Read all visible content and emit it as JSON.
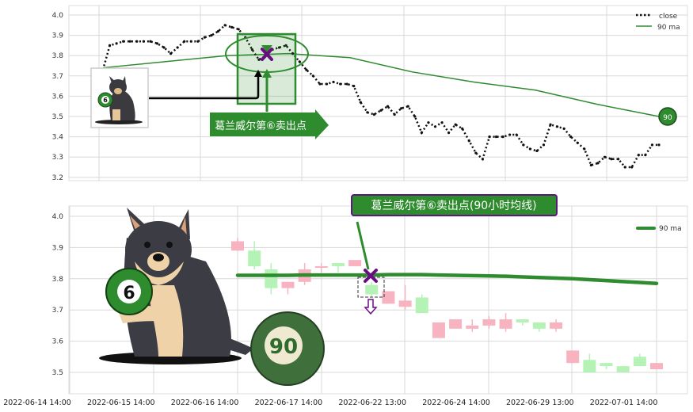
{
  "colors": {
    "ma": "#2e8b2e",
    "close": "#111111",
    "up": "#f7b3c0",
    "down": "#b5f2b5",
    "purple": "#6a0d83",
    "banner": "#2e8b2e"
  },
  "chart_data": [
    {
      "type": "line",
      "ylim": [
        3.2,
        4.0
      ],
      "yticks": [
        "3.2",
        "3.3",
        "3.4",
        "3.5",
        "3.6",
        "3.7",
        "3.8",
        "3.9",
        "4.0"
      ],
      "grid": true,
      "legend_position": "top-right",
      "legend": [
        "close",
        "90 ma"
      ],
      "series": [
        {
          "name": "close",
          "style": "dotted",
          "values": [
            3.73,
            3.85,
            3.86,
            3.87,
            3.87,
            3.87,
            3.87,
            3.87,
            3.86,
            3.84,
            3.81,
            3.84,
            3.87,
            3.87,
            3.87,
            3.89,
            3.9,
            3.92,
            3.95,
            3.94,
            3.93,
            3.89,
            3.83,
            3.78,
            3.8,
            3.83,
            3.84,
            3.85,
            3.81,
            3.77,
            3.73,
            3.7,
            3.66,
            3.66,
            3.67,
            3.66,
            3.66,
            3.65,
            3.57,
            3.52,
            3.51,
            3.53,
            3.55,
            3.51,
            3.54,
            3.55,
            3.5,
            3.42,
            3.47,
            3.45,
            3.47,
            3.42,
            3.46,
            3.44,
            3.38,
            3.32,
            3.29,
            3.4,
            3.4,
            3.4,
            3.41,
            3.41,
            3.36,
            3.34,
            3.33,
            3.36,
            3.46,
            3.45,
            3.44,
            3.4,
            3.37,
            3.34,
            3.26,
            3.27,
            3.3,
            3.29,
            3.29,
            3.25,
            3.25,
            3.31,
            3.31,
            3.36,
            3.36
          ]
        },
        {
          "name": "90 ma",
          "values": [
            3.74,
            3.77,
            3.8,
            3.81,
            3.79,
            3.72,
            3.67,
            3.63,
            3.56,
            3.5
          ]
        }
      ],
      "annotations": {
        "sell_label": "葛兰威尔第⑥卖出点",
        "end_badge": "90",
        "ball_label": "6"
      }
    },
    {
      "type": "candlestick",
      "ylim": [
        3.45,
        4.0
      ],
      "yticks": [
        "3.5",
        "3.6",
        "3.7",
        "3.8",
        "3.9",
        "4.0"
      ],
      "grid": true,
      "legend_position": "top-right",
      "legend": [
        "90 ma"
      ],
      "xticklabels": [
        "2022-06-14 14:00",
        "2022-06-15 14:00",
        "2022-06-16 14:00",
        "2022-06-17 14:00",
        "2022-06-22 13:00",
        "2022-06-24 14:00",
        "2022-06-29 13:00",
        "2022-07-01 14:00"
      ],
      "candles": [
        {
          "o": 3.89,
          "c": 3.92,
          "h": 3.93,
          "l": 3.89
        },
        {
          "o": 3.89,
          "c": 3.84,
          "h": 3.92,
          "l": 3.83
        },
        {
          "o": 3.83,
          "c": 3.77,
          "h": 3.85,
          "l": 3.75
        },
        {
          "o": 3.77,
          "c": 3.79,
          "h": 3.79,
          "l": 3.75
        },
        {
          "o": 3.79,
          "c": 3.83,
          "h": 3.85,
          "l": 3.78
        },
        {
          "o": 3.835,
          "c": 3.84,
          "h": 3.85,
          "l": 3.82
        },
        {
          "o": 3.85,
          "c": 3.84,
          "h": 3.85,
          "l": 3.82
        },
        {
          "o": 3.84,
          "c": 3.86,
          "h": 3.86,
          "l": 3.84
        },
        {
          "o": 3.78,
          "c": 3.75,
          "h": 3.79,
          "l": 3.74
        },
        {
          "o": 3.72,
          "c": 3.76,
          "h": 3.76,
          "l": 3.72
        },
        {
          "o": 3.71,
          "c": 3.73,
          "h": 3.78,
          "l": 3.7
        },
        {
          "o": 3.74,
          "c": 3.69,
          "h": 3.75,
          "l": 3.69
        },
        {
          "o": 3.61,
          "c": 3.66,
          "h": 3.66,
          "l": 3.61
        },
        {
          "o": 3.64,
          "c": 3.67,
          "h": 3.67,
          "l": 3.64
        },
        {
          "o": 3.64,
          "c": 3.65,
          "h": 3.67,
          "l": 3.63
        },
        {
          "o": 3.65,
          "c": 3.67,
          "h": 3.68,
          "l": 3.64
        },
        {
          "o": 3.64,
          "c": 3.67,
          "h": 3.69,
          "l": 3.63
        },
        {
          "o": 3.67,
          "c": 3.66,
          "h": 3.67,
          "l": 3.65
        },
        {
          "o": 3.66,
          "c": 3.64,
          "h": 3.66,
          "l": 3.63
        },
        {
          "o": 3.64,
          "c": 3.66,
          "h": 3.67,
          "l": 3.63
        },
        {
          "o": 3.53,
          "c": 3.57,
          "h": 3.57,
          "l": 3.53
        },
        {
          "o": 3.54,
          "c": 3.5,
          "h": 3.56,
          "l": 3.5
        },
        {
          "o": 3.53,
          "c": 3.52,
          "h": 3.53,
          "l": 3.51
        },
        {
          "o": 3.52,
          "c": 3.5,
          "h": 3.52,
          "l": 3.5
        },
        {
          "o": 3.55,
          "c": 3.52,
          "h": 3.56,
          "l": 3.52
        },
        {
          "o": 3.51,
          "c": 3.53,
          "h": 3.53,
          "l": 3.51
        }
      ],
      "series": [
        {
          "name": "90 ma",
          "values": [
            3.811,
            3.811,
            3.811,
            3.811,
            3.812,
            3.812,
            3.812,
            3.812,
            3.812,
            3.813,
            3.813,
            3.813,
            3.812,
            3.811,
            3.81,
            3.809,
            3.808,
            3.806,
            3.804,
            3.802,
            3.8,
            3.797,
            3.794,
            3.791,
            3.788,
            3.785
          ]
        }
      ],
      "annotations": {
        "sell_label": "葛兰威尔第⑥卖出点(90小时均线)",
        "ball_label": "6",
        "ball90_label": "90",
        "signal_index": 8
      }
    }
  ]
}
